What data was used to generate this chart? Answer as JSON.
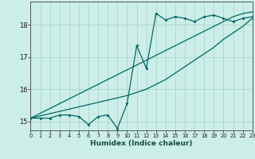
{
  "xlabel": "Humidex (Indice chaleur)",
  "background_color": "#cceee8",
  "grid_color": "#b0d8d0",
  "line_color": "#006666",
  "xlim": [
    0,
    23
  ],
  "ylim": [
    14.72,
    18.72
  ],
  "yticks": [
    15,
    16,
    17,
    18
  ],
  "xticks": [
    0,
    1,
    2,
    3,
    4,
    5,
    6,
    7,
    8,
    9,
    10,
    11,
    12,
    13,
    14,
    15,
    16,
    17,
    18,
    19,
    20,
    21,
    22,
    23
  ],
  "series_jagged": [
    15.1,
    15.1,
    15.1,
    15.2,
    15.2,
    15.15,
    14.9,
    15.15,
    15.2,
    14.78,
    15.55,
    17.35,
    16.65,
    18.35,
    18.15,
    18.25,
    18.2,
    18.1,
    18.25,
    18.3,
    18.2,
    18.1,
    18.2,
    18.25
  ],
  "series_high": [
    15.1,
    15.25,
    15.4,
    15.55,
    15.7,
    15.85,
    16.0,
    16.15,
    16.3,
    16.45,
    16.6,
    16.75,
    16.9,
    17.05,
    17.2,
    17.35,
    17.5,
    17.65,
    17.8,
    17.95,
    18.1,
    18.25,
    18.35,
    18.4
  ],
  "series_low": [
    15.1,
    15.17,
    15.24,
    15.31,
    15.38,
    15.45,
    15.52,
    15.59,
    15.66,
    15.73,
    15.8,
    15.9,
    16.0,
    16.15,
    16.3,
    16.5,
    16.7,
    16.9,
    17.1,
    17.3,
    17.55,
    17.75,
    17.95,
    18.2
  ]
}
